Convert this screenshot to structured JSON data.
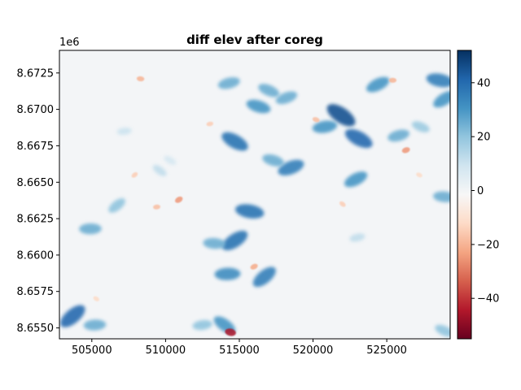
{
  "chart_data": {
    "type": "heatmap",
    "title": "diff elev after coreg",
    "xlabel": "",
    "ylabel": "",
    "y_offset_label": "1e6",
    "xlim": [
      502800,
      529300
    ],
    "ylim": [
      8.65425,
      8.67405
    ],
    "x_ticks": [
      505000,
      510000,
      515000,
      520000,
      525000
    ],
    "x_tick_labels": [
      "505000",
      "510000",
      "515000",
      "520000",
      "525000"
    ],
    "y_ticks": [
      8.655,
      8.6575,
      8.66,
      8.6625,
      8.665,
      8.6675,
      8.67,
      8.6725
    ],
    "y_tick_labels": [
      "8.6550",
      "8.6575",
      "8.6600",
      "8.6625",
      "8.6650",
      "8.6675",
      "8.6700",
      "8.6725"
    ],
    "colorbar": {
      "colormap": "RdBu",
      "vmin": -55,
      "vmax": 52,
      "ticks": [
        40,
        20,
        0,
        -20,
        -40
      ],
      "tick_labels": [
        "40",
        "20",
        "0",
        "−20",
        "−40"
      ],
      "colors": [
        "#67001f",
        "#b2182b",
        "#d6604d",
        "#f4a582",
        "#fddbc7",
        "#f7f7f7",
        "#d1e5f0",
        "#92c5de",
        "#4393c3",
        "#2166ac",
        "#053061"
      ]
    },
    "features": [
      {
        "name": "blue patch",
        "x": 503700,
        "y": 8.6558,
        "value": 40
      },
      {
        "name": "blue patch",
        "x": 505200,
        "y": 8.6552,
        "value": 25
      },
      {
        "name": "blue patch",
        "x": 521900,
        "y": 8.6696,
        "value": 45
      },
      {
        "name": "blue patch",
        "x": 520800,
        "y": 8.6688,
        "value": 30
      },
      {
        "name": "blue patch",
        "x": 523100,
        "y": 8.668,
        "value": 40
      },
      {
        "name": "blue patch",
        "x": 525800,
        "y": 8.6682,
        "value": 25
      },
      {
        "name": "blue patch",
        "x": 527300,
        "y": 8.6688,
        "value": 18
      },
      {
        "name": "blue patch",
        "x": 518500,
        "y": 8.666,
        "value": 35
      },
      {
        "name": "blue patch",
        "x": 517300,
        "y": 8.6665,
        "value": 25
      },
      {
        "name": "blue patch",
        "x": 522900,
        "y": 8.6652,
        "value": 30
      },
      {
        "name": "blue patch",
        "x": 515700,
        "y": 8.663,
        "value": 38
      },
      {
        "name": "blue patch",
        "x": 514700,
        "y": 8.661,
        "value": 38
      },
      {
        "name": "blue patch",
        "x": 513300,
        "y": 8.6608,
        "value": 25
      },
      {
        "name": "blue patch",
        "x": 516700,
        "y": 8.6585,
        "value": 35
      },
      {
        "name": "blue patch",
        "x": 514200,
        "y": 8.6587,
        "value": 32
      },
      {
        "name": "blue patch",
        "x": 514000,
        "y": 8.6552,
        "value": 30
      },
      {
        "name": "blue patch",
        "x": 512500,
        "y": 8.6552,
        "value": 20
      },
      {
        "name": "blue patch",
        "x": 514700,
        "y": 8.6678,
        "value": 38
      },
      {
        "name": "blue patch",
        "x": 514300,
        "y": 8.6718,
        "value": 25
      },
      {
        "name": "blue patch",
        "x": 517000,
        "y": 8.6713,
        "value": 25
      },
      {
        "name": "blue patch",
        "x": 518200,
        "y": 8.6708,
        "value": 25
      },
      {
        "name": "blue patch",
        "x": 516300,
        "y": 8.6702,
        "value": 30
      },
      {
        "name": "blue patch",
        "x": 524400,
        "y": 8.6717,
        "value": 30
      },
      {
        "name": "blue patch",
        "x": 528600,
        "y": 8.672,
        "value": 35
      },
      {
        "name": "blue patch",
        "x": 528900,
        "y": 8.6707,
        "value": 30
      },
      {
        "name": "blue patch",
        "x": 528900,
        "y": 8.664,
        "value": 25
      },
      {
        "name": "blue patch",
        "x": 506700,
        "y": 8.6634,
        "value": 20
      },
      {
        "name": "blue patch",
        "x": 504900,
        "y": 8.6618,
        "value": 25
      },
      {
        "name": "blue patch",
        "x": 509600,
        "y": 8.6658,
        "value": 12
      },
      {
        "name": "blue patch",
        "x": 507200,
        "y": 8.6685,
        "value": 10
      },
      {
        "name": "blue patch",
        "x": 510300,
        "y": 8.6665,
        "value": 8
      },
      {
        "name": "blue patch",
        "x": 523000,
        "y": 8.6612,
        "value": 12
      },
      {
        "name": "blue patch",
        "x": 528900,
        "y": 8.6548,
        "value": 20
      },
      {
        "name": "red speckle",
        "x": 526300,
        "y": 8.6672,
        "value": -25
      },
      {
        "name": "red speckle",
        "x": 520200,
        "y": 8.6693,
        "value": -18
      },
      {
        "name": "red speckle",
        "x": 516000,
        "y": 8.6592,
        "value": -22
      },
      {
        "name": "red speckle",
        "x": 514400,
        "y": 8.6547,
        "value": -45
      },
      {
        "name": "red speckle",
        "x": 510900,
        "y": 8.6638,
        "value": -25
      },
      {
        "name": "red speckle",
        "x": 508300,
        "y": 8.6721,
        "value": -20
      },
      {
        "name": "red speckle",
        "x": 507900,
        "y": 8.6655,
        "value": -15
      },
      {
        "name": "red speckle",
        "x": 525400,
        "y": 8.672,
        "value": -20
      },
      {
        "name": "red speckle",
        "x": 522000,
        "y": 8.6635,
        "value": -15
      },
      {
        "name": "red speckle",
        "x": 509400,
        "y": 8.6633,
        "value": -18
      },
      {
        "name": "red speckle",
        "x": 505300,
        "y": 8.657,
        "value": -12
      },
      {
        "name": "red speckle",
        "x": 513000,
        "y": 8.669,
        "value": -15
      },
      {
        "name": "red speckle",
        "x": 527200,
        "y": 8.6655,
        "value": -12
      }
    ],
    "grid": false
  }
}
